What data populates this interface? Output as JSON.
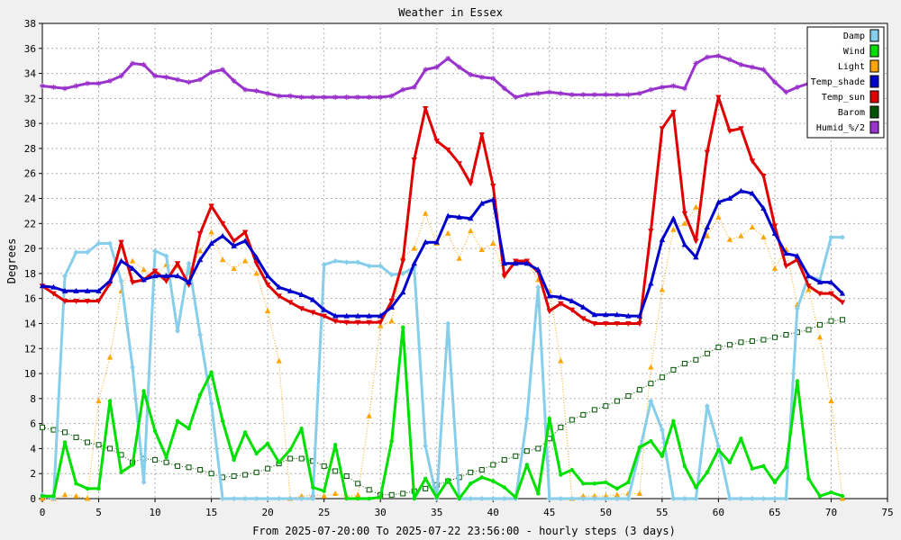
{
  "chart_data": {
    "type": "line",
    "title": "Weather in Essex",
    "xlabel": "From 2025-07-20:00 To 2025-07-22 23:56:00 - hourly steps (3 days)",
    "ylabel": "Degrees",
    "xlim": [
      0,
      75
    ],
    "ylim": [
      0,
      38
    ],
    "xticks": [
      0,
      5,
      10,
      15,
      20,
      25,
      30,
      35,
      40,
      45,
      50,
      55,
      60,
      65,
      70,
      75
    ],
    "yticks": [
      0,
      2,
      4,
      6,
      8,
      10,
      12,
      14,
      16,
      18,
      20,
      22,
      24,
      26,
      28,
      30,
      32,
      34,
      36,
      38
    ],
    "grid": true,
    "legend_position": "top-right",
    "series": [
      {
        "name": "Damp",
        "color": "#87ceeb",
        "marker": "diamond",
        "style": "solid",
        "values": [
          0.3,
          0,
          17.8,
          19.7,
          19.7,
          20.4,
          20.4,
          17.4,
          10.5,
          1.3,
          19.8,
          19.4,
          13.4,
          18.8,
          13.1,
          7.6,
          0,
          0,
          0,
          0,
          0,
          0,
          0,
          0,
          0,
          18.7,
          19,
          18.9,
          18.9,
          18.6,
          18.6,
          17.9,
          18,
          18.5,
          4.2,
          0,
          14,
          0,
          0,
          0,
          0,
          0,
          0,
          6.4,
          16.9,
          0,
          0,
          0,
          0,
          0,
          0,
          0,
          0,
          3.8,
          7.8,
          5.5,
          0,
          0,
          0,
          7.4,
          4.2,
          0,
          0,
          0,
          0,
          0,
          0,
          15.2,
          17.8,
          17.5,
          20.9,
          20.9
        ]
      },
      {
        "name": "Wind",
        "color": "#00e000",
        "marker": "circle",
        "style": "solid",
        "values": [
          0.2,
          0.2,
          4.5,
          1.2,
          0.8,
          0.8,
          7.8,
          2.1,
          2.7,
          8.6,
          5.4,
          3.3,
          6.2,
          5.6,
          8.3,
          10.1,
          6.2,
          3.1,
          5.3,
          3.6,
          4.4,
          2.9,
          3.9,
          5.6,
          0.9,
          0.6,
          4.3,
          0,
          0,
          0,
          0.1,
          4.6,
          13.7,
          0,
          1.6,
          0.1,
          1.5,
          0,
          1.2,
          1.7,
          1.4,
          0.9,
          0.1,
          2.7,
          0.4,
          6.4,
          1.9,
          2.3,
          1.2,
          1.2,
          1.3,
          0.8,
          1.3,
          4.1,
          4.6,
          3.4,
          6.2,
          2.6,
          0.9,
          2.1,
          3.9,
          2.9,
          4.8,
          2.4,
          2.6,
          1.3,
          2.5,
          9.4,
          1.6,
          0.2,
          0.5,
          0.2
        ]
      },
      {
        "name": "Light",
        "color": "#ffa500",
        "marker": "triangle",
        "style": "dotted",
        "values": [
          0,
          0,
          0.3,
          0.2,
          0,
          7.8,
          11.3,
          16.6,
          19,
          18.3,
          17.8,
          18.7,
          18.6,
          18.1,
          19.8,
          21.3,
          19.1,
          18.4,
          19,
          18,
          15,
          11,
          0,
          0.2,
          0.3,
          0.2,
          0.4,
          0.2,
          0.3,
          6.6,
          13.8,
          14.2,
          19.3,
          20,
          22.8,
          20.4,
          21.2,
          19.2,
          21.4,
          19.9,
          20.4,
          17.9,
          18.8,
          18.9,
          17.5,
          16.6,
          11,
          0,
          0.2,
          0.2,
          0.2,
          0.3,
          0.4,
          0.4,
          10.5,
          16.7,
          21.5,
          22,
          23.3,
          21,
          22.5,
          20.7,
          21,
          21.7,
          20.9,
          18.4,
          19.9,
          15.5,
          16.7,
          12.9,
          7.8,
          0
        ]
      },
      {
        "name": "Temp_shade",
        "color": "#0000cc",
        "marker": "triangle",
        "style": "solid",
        "values": [
          17,
          16.9,
          16.6,
          16.6,
          16.6,
          16.6,
          17.4,
          19,
          18.4,
          17.5,
          17.8,
          17.8,
          17.8,
          17.3,
          19.1,
          20.4,
          21,
          20.2,
          20.6,
          19.3,
          17.8,
          16.9,
          16.6,
          16.3,
          15.9,
          15.1,
          14.6,
          14.6,
          14.6,
          14.6,
          14.6,
          15.3,
          16.5,
          18.8,
          20.5,
          20.5,
          22.6,
          22.5,
          22.4,
          23.6,
          23.9,
          18.8,
          18.8,
          18.8,
          18.3,
          16.2,
          16.1,
          15.8,
          15.3,
          14.7,
          14.7,
          14.7,
          14.6,
          14.6,
          17.2,
          20.7,
          22.4,
          20.3,
          19.3,
          21.7,
          23.7,
          24,
          24.6,
          24.4,
          23.2,
          21.2,
          19.6,
          19.4,
          17.8,
          17.3,
          17.3,
          16.4
        ]
      },
      {
        "name": "Temp_sun",
        "color": "#e00000",
        "marker": "triangle-down",
        "style": "solid",
        "values": [
          17,
          16.4,
          15.8,
          15.8,
          15.8,
          15.8,
          17.2,
          20.5,
          17.3,
          17.5,
          18.2,
          17.4,
          18.8,
          17.1,
          21.2,
          23.4,
          22,
          20.6,
          21.3,
          18.8,
          17.1,
          16.2,
          15.7,
          15.2,
          14.9,
          14.6,
          14.2,
          14.1,
          14.1,
          14.1,
          14.1,
          15.8,
          19,
          27.1,
          31.2,
          28.6,
          27.9,
          26.8,
          25.2,
          29.1,
          25,
          17.8,
          19,
          19,
          18.1,
          15,
          15.6,
          15.1,
          14.4,
          14,
          14,
          14,
          14,
          14,
          21.4,
          29.6,
          30.9,
          22.8,
          20.6,
          27.7,
          32.1,
          29.4,
          29.6,
          27,
          25.8,
          21.8,
          18.6,
          19.1,
          17,
          16.4,
          16.4,
          15.7
        ]
      },
      {
        "name": "Barom",
        "color": "#005500",
        "marker": "square-open",
        "style": "dotted",
        "values": [
          5.7,
          5.5,
          5.3,
          4.9,
          4.5,
          4.3,
          4,
          3.5,
          2.9,
          3.2,
          3.1,
          2.9,
          2.6,
          2.5,
          2.3,
          2,
          1.7,
          1.8,
          1.9,
          2.1,
          2.4,
          2.8,
          3.2,
          3.2,
          3,
          2.6,
          2.2,
          1.8,
          1.2,
          0.7,
          0.3,
          0.3,
          0.4,
          0.6,
          0.8,
          1.1,
          1.4,
          1.7,
          2.1,
          2.3,
          2.7,
          3.1,
          3.4,
          3.8,
          4,
          4.8,
          5.7,
          6.3,
          6.7,
          7.1,
          7.4,
          7.8,
          8.2,
          8.7,
          9.2,
          9.7,
          10.3,
          10.8,
          11.1,
          11.6,
          12.1,
          12.3,
          12.5,
          12.6,
          12.7,
          12.9,
          13.1,
          13.3,
          13.5,
          13.9,
          14.2,
          14.3
        ]
      },
      {
        "name": "Humid_%/2",
        "color": "#9933cc",
        "marker": "star",
        "style": "solid",
        "values": [
          33,
          32.9,
          32.8,
          33,
          33.2,
          33.2,
          33.4,
          33.8,
          34.8,
          34.7,
          33.8,
          33.7,
          33.5,
          33.3,
          33.5,
          34.1,
          34.3,
          33.4,
          32.7,
          32.6,
          32.4,
          32.2,
          32.2,
          32.1,
          32.1,
          32.1,
          32.1,
          32.1,
          32.1,
          32.1,
          32.1,
          32.2,
          32.7,
          32.9,
          34.3,
          34.5,
          35.2,
          34.5,
          33.9,
          33.7,
          33.6,
          32.8,
          32.1,
          32.3,
          32.4,
          32.5,
          32.4,
          32.3,
          32.3,
          32.3,
          32.3,
          32.3,
          32.3,
          32.4,
          32.7,
          32.9,
          33,
          32.8,
          34.8,
          35.3,
          35.4,
          35.1,
          34.7,
          34.5,
          34.3,
          33.3,
          32.5,
          32.9,
          33.2,
          33.2,
          33.2,
          33.3
        ]
      }
    ]
  }
}
